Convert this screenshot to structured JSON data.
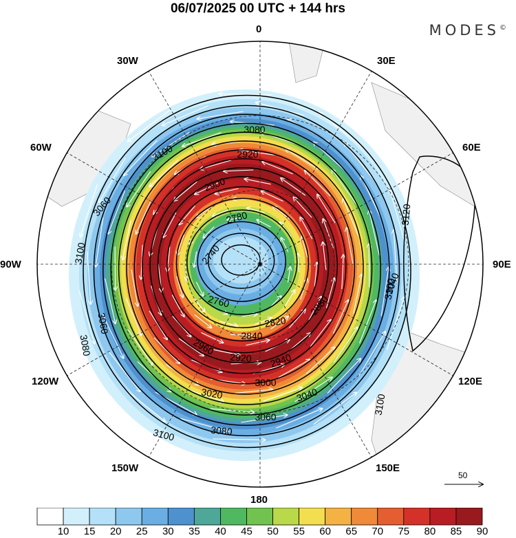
{
  "header": {
    "title": "06/07/2025  00 UTC  + 144 hrs",
    "brand": "MODES",
    "brand_mark": "©"
  },
  "longitude_labels": {
    "n0": "0",
    "e30": "30E",
    "e60": "60E",
    "e90": "90E",
    "e120": "120E",
    "e150": "150E",
    "s180": "180",
    "w150": "150W",
    "w120": "120W",
    "w90": "90W",
    "w60": "60W",
    "w30": "30W"
  },
  "contour_labels": [
    {
      "text": "3080"
    },
    {
      "text": "3100"
    },
    {
      "text": "2900"
    },
    {
      "text": "2920"
    },
    {
      "text": "3060"
    },
    {
      "text": "2780"
    },
    {
      "text": "2740"
    },
    {
      "text": "2760"
    },
    {
      "text": "2820"
    },
    {
      "text": "2840"
    },
    {
      "text": "2880"
    },
    {
      "text": "2920"
    },
    {
      "text": "2940"
    },
    {
      "text": "3000"
    },
    {
      "text": "3020"
    },
    {
      "text": "3040"
    },
    {
      "text": "3060"
    },
    {
      "text": "3080"
    },
    {
      "text": "3100"
    },
    {
      "text": "3120"
    },
    {
      "text": "3100"
    },
    {
      "text": "3100"
    },
    {
      "text": "3060"
    },
    {
      "text": "3080"
    },
    {
      "text": "2960"
    },
    {
      "text": "3040"
    },
    {
      "text": "3100"
    }
  ],
  "vector_reference": {
    "value": "50"
  },
  "colorbar": {
    "labels": [
      "10",
      "15",
      "20",
      "25",
      "30",
      "35",
      "40",
      "45",
      "50",
      "55",
      "60",
      "65",
      "70",
      "75",
      "80",
      "85",
      "90"
    ],
    "colors": [
      "#ffffff",
      "#d2f0fb",
      "#b4e1f7",
      "#8ec8ef",
      "#6aaee3",
      "#4f91cf",
      "#4ea799",
      "#50b861",
      "#72c250",
      "#b9d84a",
      "#f2de4e",
      "#f4b245",
      "#f08938",
      "#e45e31",
      "#d43228",
      "#b81d23",
      "#981a1e"
    ]
  }
}
